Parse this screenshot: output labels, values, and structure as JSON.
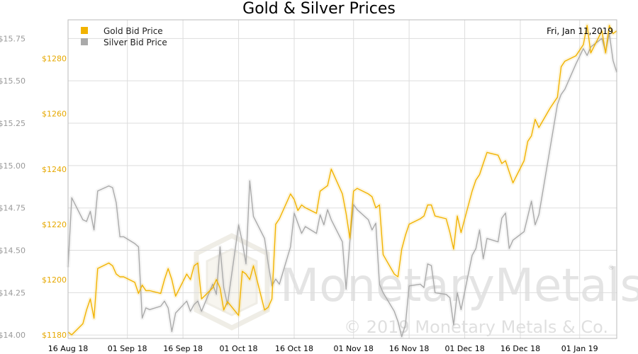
{
  "chart_data": {
    "type": "line",
    "title": "Gold & Silver Prices",
    "date_label": "Fri, Jan 11,2019",
    "x_tick_labels": [
      "16 Aug 18",
      "01 Sep 18",
      "16 Sep 18",
      "01 Oct 18",
      "16 Oct 18",
      "01 Nov 18",
      "16 Nov 18",
      "01 Dec 18",
      "16 Dec 18",
      "01 Jan 19"
    ],
    "x_tick_dates": [
      "2018-08-16",
      "2018-09-01",
      "2018-09-16",
      "2018-10-01",
      "2018-10-16",
      "2018-11-01",
      "2018-11-16",
      "2018-12-01",
      "2018-12-16",
      "2019-01-01"
    ],
    "xlim": [
      "2018-08-16",
      "2019-01-11"
    ],
    "y_left": {
      "ticks": [
        "$14.00",
        "$14.25",
        "$14.50",
        "$14.75",
        "$15.00",
        "$15.25",
        "$15.50",
        "$15.75"
      ],
      "range": [
        13.98,
        15.86
      ],
      "color": "#999999"
    },
    "y_right": {
      "ticks": [
        "$1180",
        "$1200",
        "$1220",
        "$1240",
        "$1260",
        "$1280"
      ],
      "range": [
        1178.7,
        1294.0
      ],
      "color": "#e6a800"
    },
    "grid": true,
    "legend": {
      "position": "top-left"
    },
    "series": [
      {
        "name": "Gold Bid Price",
        "axis": "right",
        "color": "#f2b300",
        "points": [
          [
            "2018-08-16",
            1181
          ],
          [
            "2018-08-17",
            1180
          ],
          [
            "2018-08-20",
            1184
          ],
          [
            "2018-08-21",
            1189
          ],
          [
            "2018-08-22",
            1193
          ],
          [
            "2018-08-23",
            1186
          ],
          [
            "2018-08-24",
            1204
          ],
          [
            "2018-08-27",
            1206
          ],
          [
            "2018-08-28",
            1205
          ],
          [
            "2018-08-29",
            1202
          ],
          [
            "2018-08-30",
            1201
          ],
          [
            "2018-08-31",
            1201
          ],
          [
            "2018-09-03",
            1199
          ],
          [
            "2018-09-04",
            1195
          ],
          [
            "2018-09-05",
            1198
          ],
          [
            "2018-09-06",
            1196
          ],
          [
            "2018-09-07",
            1196
          ],
          [
            "2018-09-10",
            1195
          ],
          [
            "2018-09-11",
            1200
          ],
          [
            "2018-09-12",
            1204
          ],
          [
            "2018-09-13",
            1200
          ],
          [
            "2018-09-14",
            1194
          ],
          [
            "2018-09-17",
            1202
          ],
          [
            "2018-09-18",
            1200
          ],
          [
            "2018-09-19",
            1205
          ],
          [
            "2018-09-20",
            1206
          ],
          [
            "2018-09-21",
            1193
          ],
          [
            "2018-09-24",
            1197
          ],
          [
            "2018-09-25",
            1200
          ],
          [
            "2018-09-26",
            1197
          ],
          [
            "2018-09-27",
            1189
          ],
          [
            "2018-09-28",
            1192
          ],
          [
            "2018-10-01",
            1187
          ],
          [
            "2018-10-02",
            1203
          ],
          [
            "2018-10-03",
            1202
          ],
          [
            "2018-10-04",
            1200
          ],
          [
            "2018-10-05",
            1205
          ],
          [
            "2018-10-08",
            1189
          ],
          [
            "2018-10-09",
            1190
          ],
          [
            "2018-10-10",
            1193
          ],
          [
            "2018-10-11",
            1220
          ],
          [
            "2018-10-12",
            1222
          ],
          [
            "2018-10-15",
            1231
          ],
          [
            "2018-10-16",
            1229
          ],
          [
            "2018-10-17",
            1225
          ],
          [
            "2018-10-18",
            1227
          ],
          [
            "2018-10-19",
            1226
          ],
          [
            "2018-10-22",
            1224
          ],
          [
            "2018-10-23",
            1232
          ],
          [
            "2018-10-24",
            1233
          ],
          [
            "2018-10-25",
            1234
          ],
          [
            "2018-10-26",
            1240
          ],
          [
            "2018-10-29",
            1231
          ],
          [
            "2018-10-30",
            1224
          ],
          [
            "2018-10-31",
            1215
          ],
          [
            "2018-11-01",
            1232
          ],
          [
            "2018-11-02",
            1233
          ],
          [
            "2018-11-05",
            1231
          ],
          [
            "2018-11-06",
            1230
          ],
          [
            "2018-11-07",
            1226
          ],
          [
            "2018-11-08",
            1227
          ],
          [
            "2018-11-09",
            1209
          ],
          [
            "2018-11-12",
            1202
          ],
          [
            "2018-11-13",
            1201
          ],
          [
            "2018-11-14",
            1211
          ],
          [
            "2018-11-15",
            1216
          ],
          [
            "2018-11-16",
            1220
          ],
          [
            "2018-11-19",
            1222
          ],
          [
            "2018-11-20",
            1223
          ],
          [
            "2018-11-21",
            1227
          ],
          [
            "2018-11-22",
            1227
          ],
          [
            "2018-11-23",
            1223
          ],
          [
            "2018-11-26",
            1222
          ],
          [
            "2018-11-27",
            1217
          ],
          [
            "2018-11-28",
            1211
          ],
          [
            "2018-11-29",
            1223
          ],
          [
            "2018-11-30",
            1217
          ],
          [
            "2018-12-03",
            1232
          ],
          [
            "2018-12-04",
            1236
          ],
          [
            "2018-12-05",
            1238
          ],
          [
            "2018-12-06",
            1242
          ],
          [
            "2018-12-07",
            1246
          ],
          [
            "2018-12-10",
            1245
          ],
          [
            "2018-12-11",
            1242
          ],
          [
            "2018-12-12",
            1243
          ],
          [
            "2018-12-13",
            1239
          ],
          [
            "2018-12-14",
            1235
          ],
          [
            "2018-12-17",
            1243
          ],
          [
            "2018-12-18",
            1250
          ],
          [
            "2018-12-19",
            1252
          ],
          [
            "2018-12-20",
            1258
          ],
          [
            "2018-12-21",
            1255
          ],
          [
            "2018-12-24",
            1262
          ],
          [
            "2018-12-26",
            1266
          ],
          [
            "2018-12-27",
            1277
          ],
          [
            "2018-12-28",
            1279
          ],
          [
            "2018-12-31",
            1281
          ],
          [
            "2019-01-02",
            1285
          ],
          [
            "2019-01-03",
            1292
          ],
          [
            "2019-01-04",
            1282
          ],
          [
            "2019-01-07",
            1290
          ],
          [
            "2019-01-08",
            1282
          ],
          [
            "2019-01-09",
            1292
          ],
          [
            "2019-01-10",
            1289
          ],
          [
            "2019-01-11",
            1290
          ]
        ]
      },
      {
        "name": "Silver Bid Price",
        "axis": "left",
        "color": "#aaaaaa",
        "points": [
          [
            "2018-08-16",
            14.4
          ],
          [
            "2018-08-17",
            14.81
          ],
          [
            "2018-08-20",
            14.68
          ],
          [
            "2018-08-21",
            14.67
          ],
          [
            "2018-08-22",
            14.73
          ],
          [
            "2018-08-23",
            14.62
          ],
          [
            "2018-08-24",
            14.85
          ],
          [
            "2018-08-27",
            14.88
          ],
          [
            "2018-08-28",
            14.87
          ],
          [
            "2018-08-29",
            14.78
          ],
          [
            "2018-08-30",
            14.58
          ],
          [
            "2018-08-31",
            14.58
          ],
          [
            "2018-09-03",
            14.54
          ],
          [
            "2018-09-04",
            14.52
          ],
          [
            "2018-09-05",
            14.1
          ],
          [
            "2018-09-06",
            14.16
          ],
          [
            "2018-09-07",
            14.15
          ],
          [
            "2018-09-10",
            14.17
          ],
          [
            "2018-09-11",
            14.2
          ],
          [
            "2018-09-12",
            14.16
          ],
          [
            "2018-09-13",
            14.02
          ],
          [
            "2018-09-14",
            14.13
          ],
          [
            "2018-09-17",
            14.2
          ],
          [
            "2018-09-18",
            14.14
          ],
          [
            "2018-09-19",
            14.18
          ],
          [
            "2018-09-20",
            14.2
          ],
          [
            "2018-09-21",
            14.14
          ],
          [
            "2018-09-24",
            14.3
          ],
          [
            "2018-09-25",
            14.24
          ],
          [
            "2018-09-26",
            14.52
          ],
          [
            "2018-09-27",
            14.28
          ],
          [
            "2018-09-28",
            14.18
          ],
          [
            "2018-10-01",
            14.65
          ],
          [
            "2018-10-02",
            14.55
          ],
          [
            "2018-10-03",
            14.42
          ],
          [
            "2018-10-04",
            14.91
          ],
          [
            "2018-10-05",
            14.7
          ],
          [
            "2018-10-08",
            14.57
          ],
          [
            "2018-10-09",
            14.42
          ],
          [
            "2018-10-10",
            14.29
          ],
          [
            "2018-10-11",
            14.33
          ],
          [
            "2018-10-12",
            14.3
          ],
          [
            "2018-10-15",
            14.52
          ],
          [
            "2018-10-16",
            14.72
          ],
          [
            "2018-10-17",
            14.66
          ],
          [
            "2018-10-18",
            14.6
          ],
          [
            "2018-10-19",
            14.64
          ],
          [
            "2018-10-22",
            14.6
          ],
          [
            "2018-10-23",
            14.71
          ],
          [
            "2018-10-24",
            14.65
          ],
          [
            "2018-10-25",
            14.74
          ],
          [
            "2018-10-26",
            14.68
          ],
          [
            "2018-10-29",
            14.55
          ],
          [
            "2018-10-30",
            14.27
          ],
          [
            "2018-10-31",
            14.55
          ],
          [
            "2018-11-01",
            14.77
          ],
          [
            "2018-11-02",
            14.74
          ],
          [
            "2018-11-05",
            14.68
          ],
          [
            "2018-11-06",
            14.62
          ],
          [
            "2018-11-07",
            14.66
          ],
          [
            "2018-11-08",
            14.3
          ],
          [
            "2018-11-09",
            14.25
          ],
          [
            "2018-11-12",
            14.14
          ],
          [
            "2018-11-13",
            14.08
          ],
          [
            "2018-11-14",
            13.99
          ],
          [
            "2018-11-15",
            14.06
          ],
          [
            "2018-11-16",
            14.29
          ],
          [
            "2018-11-19",
            14.3
          ],
          [
            "2018-11-20",
            14.28
          ],
          [
            "2018-11-21",
            14.42
          ],
          [
            "2018-11-22",
            14.41
          ],
          [
            "2018-11-23",
            14.25
          ],
          [
            "2018-11-26",
            14.24
          ],
          [
            "2018-11-27",
            14.22
          ],
          [
            "2018-11-28",
            14.06
          ],
          [
            "2018-11-29",
            14.25
          ],
          [
            "2018-11-30",
            14.15
          ],
          [
            "2018-12-03",
            14.47
          ],
          [
            "2018-12-04",
            14.51
          ],
          [
            "2018-12-05",
            14.62
          ],
          [
            "2018-12-06",
            14.45
          ],
          [
            "2018-12-07",
            14.57
          ],
          [
            "2018-12-10",
            14.55
          ],
          [
            "2018-12-11",
            14.69
          ],
          [
            "2018-12-12",
            14.72
          ],
          [
            "2018-12-13",
            14.51
          ],
          [
            "2018-12-14",
            14.56
          ],
          [
            "2018-12-17",
            14.61
          ],
          [
            "2018-12-18",
            14.7
          ],
          [
            "2018-12-19",
            14.79
          ],
          [
            "2018-12-20",
            14.65
          ],
          [
            "2018-12-21",
            14.71
          ],
          [
            "2018-12-24",
            15.1
          ],
          [
            "2018-12-26",
            15.36
          ],
          [
            "2018-12-27",
            15.42
          ],
          [
            "2018-12-28",
            15.45
          ],
          [
            "2018-12-31",
            15.6
          ],
          [
            "2019-01-02",
            15.69
          ],
          [
            "2019-01-03",
            15.65
          ],
          [
            "2019-01-04",
            15.7
          ],
          [
            "2019-01-07",
            15.75
          ],
          [
            "2019-01-08",
            15.67
          ],
          [
            "2019-01-09",
            15.78
          ],
          [
            "2019-01-10",
            15.62
          ],
          [
            "2019-01-11",
            15.55
          ]
        ]
      }
    ]
  },
  "watermark": {
    "brand": "MonetaryMetals",
    "copyright": "© 2019 Monetary Metals & Co.",
    "registered_mark": "®"
  }
}
